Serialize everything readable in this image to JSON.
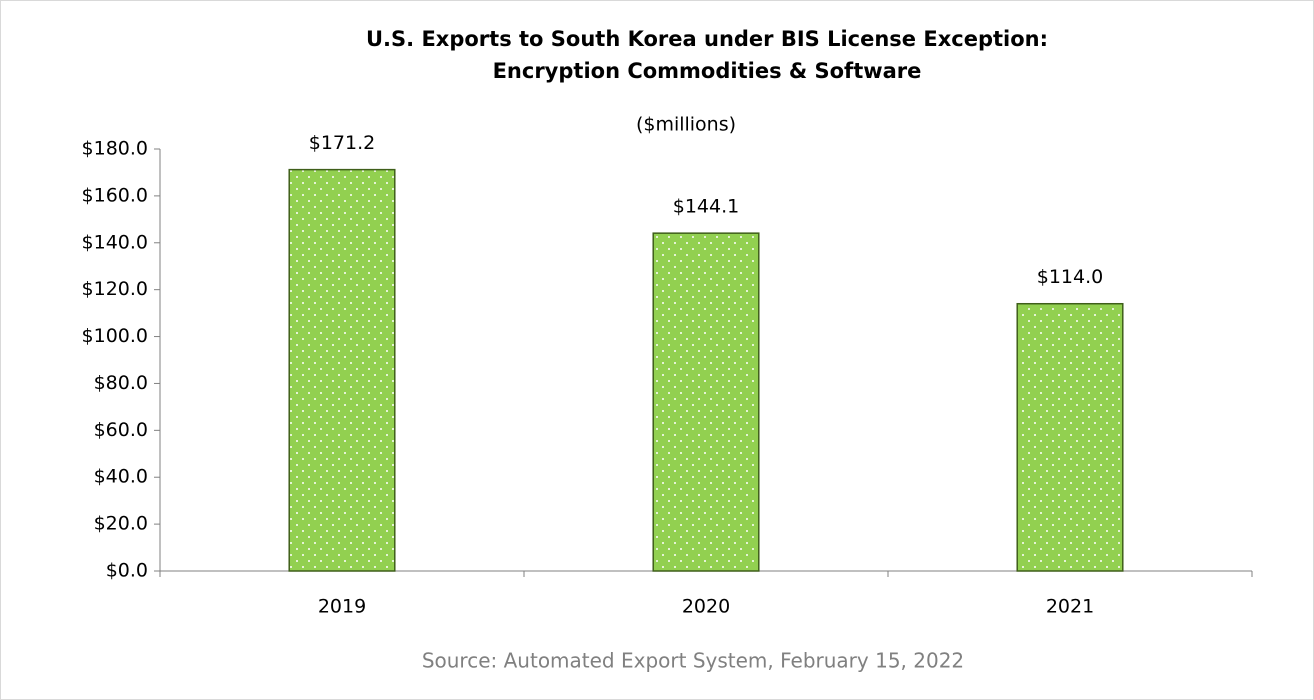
{
  "chart_data": {
    "type": "bar",
    "title": [
      "U.S. Exports to South Korea under BIS License Exception:",
      "Encryption Commodities & Software"
    ],
    "subtitle": "($millions)",
    "source": "Source: Automated Export System, February 15, 2022",
    "categories": [
      "2019",
      "2020",
      "2021"
    ],
    "values": [
      171.2,
      144.1,
      114.0
    ],
    "value_labels": [
      "$171.2",
      "$144.1",
      "$114.0"
    ],
    "color": "#92d050",
    "ylim": [
      0,
      180
    ],
    "yticks": [
      {
        "value": 0,
        "label": "$0.0"
      },
      {
        "value": 20,
        "label": "$20.0"
      },
      {
        "value": 40,
        "label": "$40.0"
      },
      {
        "value": 60,
        "label": "$60.0"
      },
      {
        "value": 80,
        "label": "$80.0"
      },
      {
        "value": 100,
        "label": "$100.0"
      },
      {
        "value": 120,
        "label": "$120.0"
      },
      {
        "value": 140,
        "label": "$140.0"
      },
      {
        "value": 160,
        "label": "$160.0"
      },
      {
        "value": 180,
        "label": "$180.0"
      }
    ],
    "grid": false
  }
}
